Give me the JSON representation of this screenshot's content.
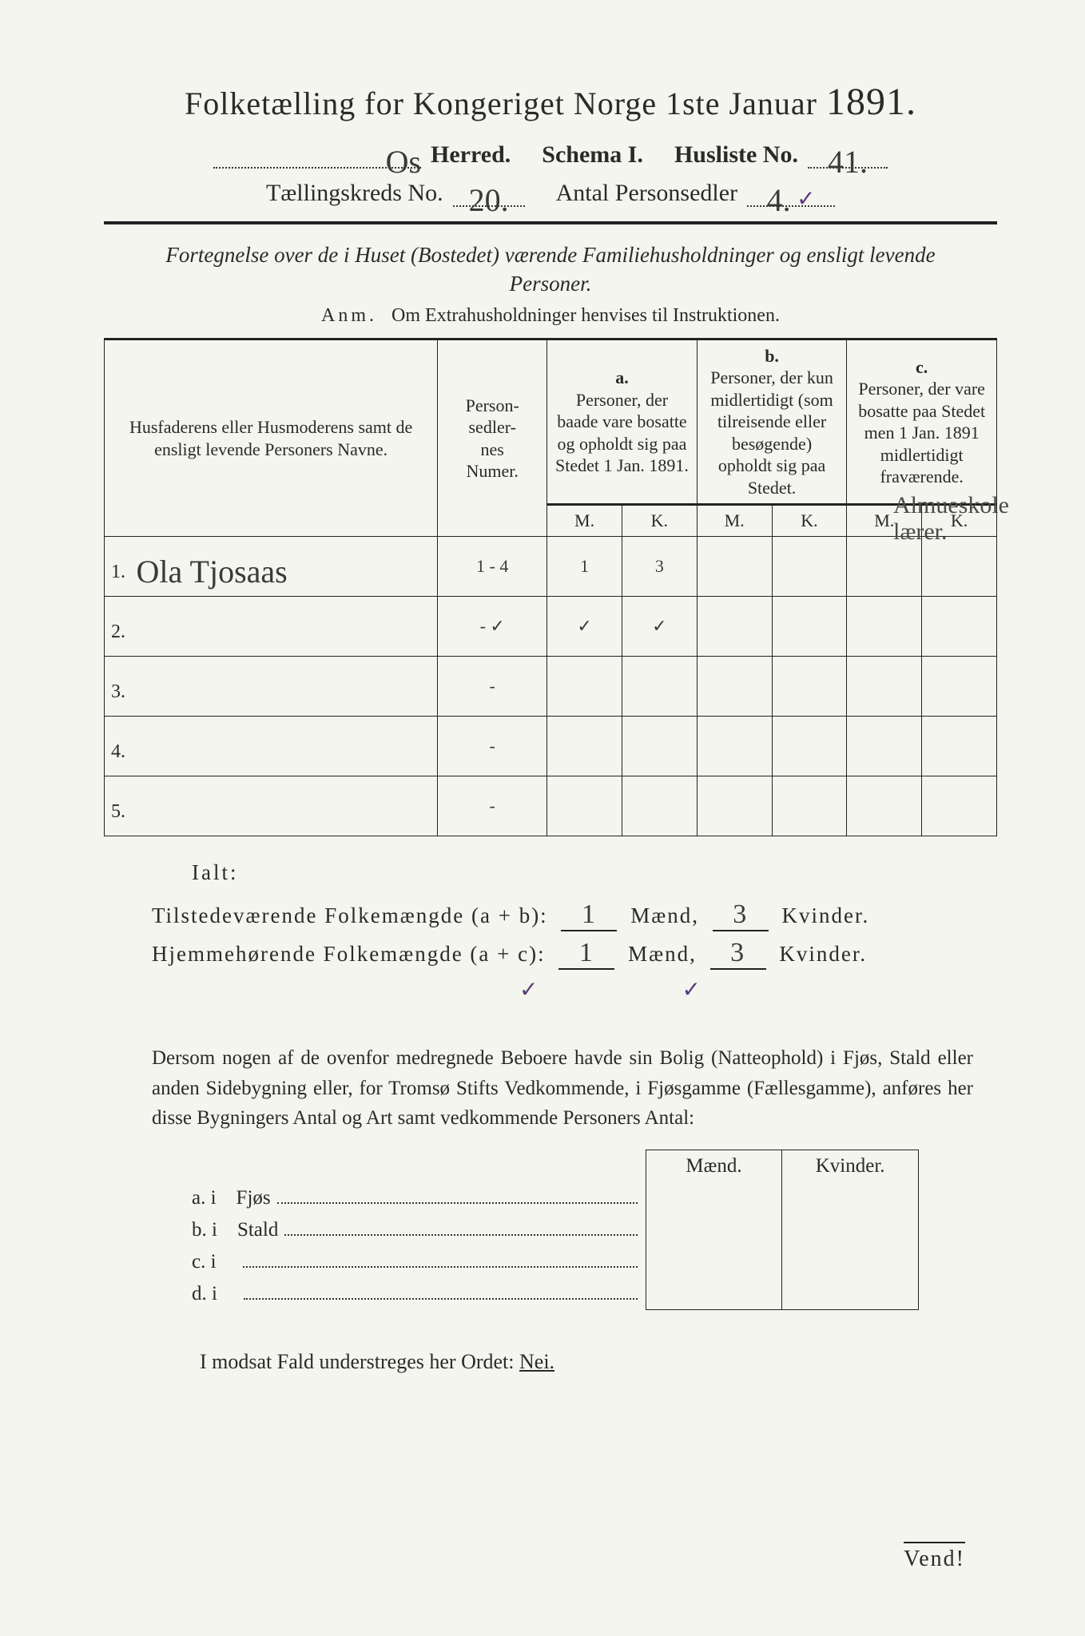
{
  "title": {
    "main_a": "Folketælling for Kongeriget Norge 1ste Januar",
    "year": "1891.",
    "herred_value": "Os",
    "herred_label": "Herred.",
    "schema": "Schema I.",
    "husliste_label": "Husliste No.",
    "husliste_value": "41.",
    "kreds_label": "Tællingskreds No.",
    "kreds_value": "20.",
    "antal_label": "Antal Personsedler",
    "antal_value": "4.",
    "antal_check": "✓"
  },
  "subtitle": "Fortegnelse over de i Huset (Bostedet) værende Familiehusholdninger og ensligt levende Personer.",
  "anm_label": "Anm.",
  "anm_text": "Om Extrahusholdninger henvises til Instruktionen.",
  "headers": {
    "names": "Husfaderens eller Husmoderens samt de ensligt levende Personers Navne.",
    "numer": "Person-\nsedler-\nnes\nNumer.",
    "a_label": "a.",
    "a_text": "Personer, der baade vare bosatte og opholdt sig paa Stedet 1 Jan. 1891.",
    "b_label": "b.",
    "b_text": "Personer, der kun midlertidigt (som tilreisende eller besøgende) opholdt sig paa Stedet.",
    "c_label": "c.",
    "c_text": "Personer, der vare bosatte paa Stedet men 1 Jan. 1891 midlertidigt fraværende.",
    "M": "M.",
    "K": "K."
  },
  "rows": [
    {
      "n": "1.",
      "name": "Ola Tjosaas",
      "num": "1 - 4",
      "aM": "1",
      "aK": "3",
      "bM": "",
      "bK": "",
      "cM": "",
      "cK": ""
    },
    {
      "n": "2.",
      "name": "",
      "num": "- ✓",
      "aM": "✓",
      "aK": "✓",
      "bM": "",
      "bK": "",
      "cM": "",
      "cK": ""
    },
    {
      "n": "3.",
      "name": "",
      "num": "-",
      "aM": "",
      "aK": "",
      "bM": "",
      "bK": "",
      "cM": "",
      "cK": ""
    },
    {
      "n": "4.",
      "name": "",
      "num": "-",
      "aM": "",
      "aK": "",
      "bM": "",
      "bK": "",
      "cM": "",
      "cK": ""
    },
    {
      "n": "5.",
      "name": "",
      "num": "-",
      "aM": "",
      "aK": "",
      "bM": "",
      "bK": "",
      "cM": "",
      "cK": ""
    }
  ],
  "margin_note": "Almueskole lærer.",
  "ialt": "Ialt:",
  "sums": {
    "line1_label": "Tilstedeværende Folkemængde (a + b):",
    "line2_label": "Hjemmehørende Folkemængde (a + c):",
    "maend": "Mænd,",
    "kvinder": "Kvinder.",
    "v1m": "1",
    "v1k": "3",
    "v2m": "1",
    "v2k": "3",
    "check": "✓"
  },
  "para": "Dersom nogen af de ovenfor medregnede Beboere havde sin Bolig (Natteophold) i Fjøs, Stald eller anden Sidebygning eller, for Tromsø Stifts Vedkommende, i Fjøsgamme (Fællesgamme), anføres her disse Bygningers Antal og Art samt vedkommende Personers Antal:",
  "fjos": {
    "h1": "Mænd.",
    "h2": "Kvinder.",
    "rows": [
      {
        "k": "a.  i",
        "label": "Fjøs"
      },
      {
        "k": "b.  i",
        "label": "Stald"
      },
      {
        "k": "c.  i",
        "label": ""
      },
      {
        "k": "d.  i",
        "label": ""
      }
    ]
  },
  "nei": {
    "pre": "I modsat Fald understreges her Ordet:",
    "word": "Nei."
  },
  "vend": "Vend!"
}
